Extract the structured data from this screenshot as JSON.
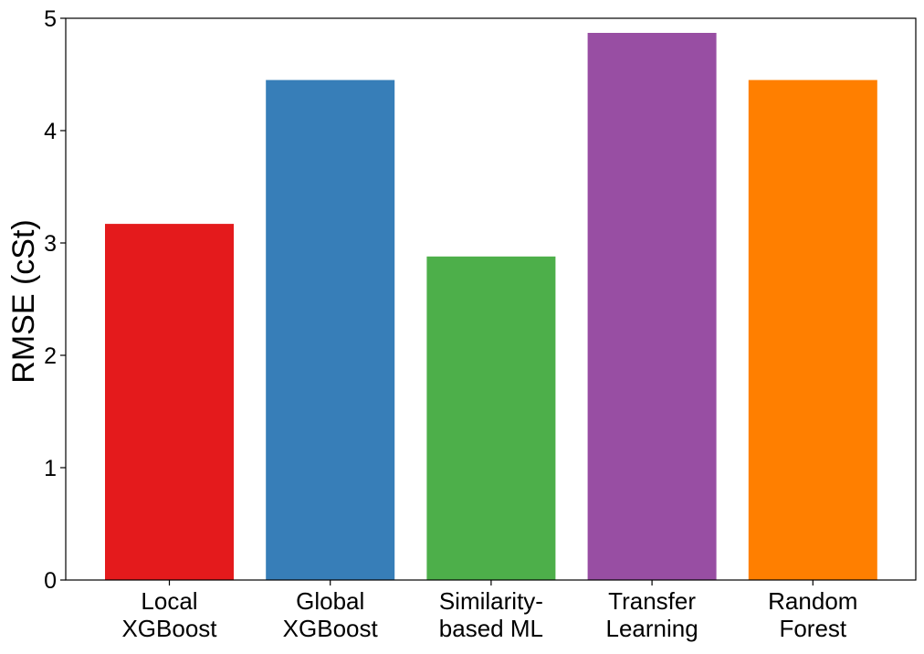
{
  "chart_data": {
    "type": "bar",
    "title": "",
    "xlabel": "",
    "ylabel": "RMSE (cSt)",
    "ylim": [
      0,
      5
    ],
    "yticks": [
      "0",
      "1",
      "2",
      "3",
      "4",
      "5"
    ],
    "grid": false,
    "categories": [
      [
        "Local",
        "XGBoost"
      ],
      [
        "Global",
        "XGBoost"
      ],
      [
        "Similarity-",
        "based ML"
      ],
      [
        "Transfer",
        "Learning"
      ],
      [
        "Random",
        "Forest"
      ]
    ],
    "values": [
      3.17,
      4.45,
      2.88,
      4.87,
      4.45
    ],
    "colors": [
      "#e41a1c",
      "#377eb8",
      "#4daf4a",
      "#984ea3",
      "#ff7f00"
    ]
  }
}
